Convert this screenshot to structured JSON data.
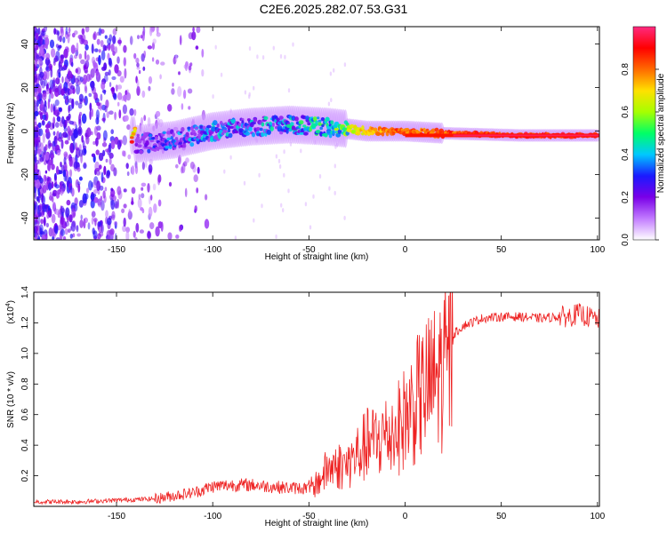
{
  "title": "C2E6.2025.282.07.53.G31",
  "chart_data": [
    {
      "type": "heatmap",
      "xlabel": "Height of straight line (km)",
      "ylabel": "Frequency (Hz)",
      "xlim": [
        -193,
        101
      ],
      "ylim": [
        -50,
        48
      ],
      "xticks": [
        -150,
        -100,
        -50,
        0,
        50,
        100
      ],
      "yticks": [
        -40,
        -20,
        0,
        20,
        40
      ],
      "colorbar": {
        "label": "Normalized spectral amplitude",
        "range": [
          0.0,
          1.0
        ],
        "ticks": [
          0.0,
          0.2,
          0.4,
          0.6,
          0.8
        ],
        "colors": [
          "#ffffff",
          "#c27bff",
          "#7a00e8",
          "#1a1aff",
          "#00c8ff",
          "#00ff66",
          "#a6ff00",
          "#ffe000",
          "#ff6a00",
          "#ff0000",
          "#ff2a80"
        ]
      },
      "signal_track": [
        {
          "x": -140,
          "f": -6,
          "amp": 0.35
        },
        {
          "x": -120,
          "f": -4,
          "amp": 0.4
        },
        {
          "x": -100,
          "f": 0,
          "amp": 0.45
        },
        {
          "x": -80,
          "f": 2,
          "amp": 0.45
        },
        {
          "x": -60,
          "f": 3,
          "amp": 0.5
        },
        {
          "x": -40,
          "f": 2,
          "amp": 0.6
        },
        {
          "x": -20,
          "f": 0,
          "amp": 0.8
        },
        {
          "x": 0,
          "f": 0,
          "amp": 0.9
        },
        {
          "x": 20,
          "f": -1,
          "amp": 0.9
        },
        {
          "x": 40,
          "f": -1.5,
          "amp": 0.95
        },
        {
          "x": 60,
          "f": -2,
          "amp": 0.95
        },
        {
          "x": 80,
          "f": -2,
          "amp": 0.95
        },
        {
          "x": 100,
          "f": -2,
          "amp": 0.95
        }
      ]
    },
    {
      "type": "line",
      "xlabel": "Height of straight line (km)",
      "ylabel": "SNR (10 * v/v)",
      "yscale_label": "(x10",
      "yscale_exp": "4",
      "xlim": [
        -193,
        101
      ],
      "ylim": [
        0,
        1.4
      ],
      "xticks": [
        -150,
        -100,
        -50,
        0,
        50,
        100
      ],
      "yticks": [
        0.2,
        0.4,
        0.6,
        0.8,
        1.0,
        1.2,
        1.4
      ],
      "series": [
        {
          "name": "SNR",
          "color": "#ee2222",
          "x": [
            -193,
            -170,
            -150,
            -130,
            -120,
            -110,
            -100,
            -90,
            -80,
            -70,
            -60,
            -50,
            -45,
            -40,
            -35,
            -30,
            -25,
            -20,
            -15,
            -10,
            -5,
            0,
            5,
            10,
            15,
            20,
            25,
            30,
            40,
            50,
            60,
            70,
            80,
            85,
            90,
            95,
            101
          ],
          "y": [
            0.03,
            0.03,
            0.04,
            0.05,
            0.07,
            0.09,
            0.13,
            0.14,
            0.14,
            0.13,
            0.12,
            0.12,
            0.18,
            0.28,
            0.3,
            0.3,
            0.38,
            0.45,
            0.48,
            0.52,
            0.55,
            0.65,
            0.75,
            0.85,
            0.92,
            1.0,
            1.12,
            1.18,
            1.23,
            1.24,
            1.24,
            1.23,
            1.24,
            1.24,
            1.26,
            1.24,
            1.22
          ]
        }
      ]
    }
  ]
}
